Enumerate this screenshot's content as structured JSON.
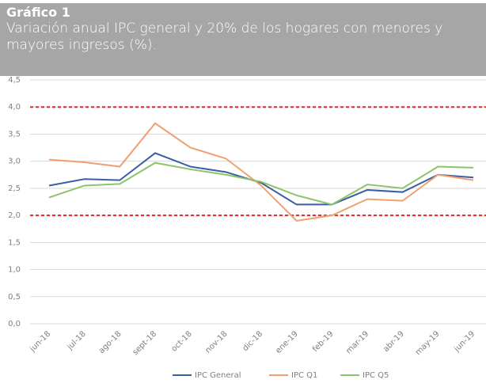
{
  "chart_data": {
    "type": "line",
    "title": "Gráfico 1",
    "subtitle": "Variación anual IPC general y 20% de los hogares con menores y mayores ingresos (%).",
    "categories": [
      "jun-18",
      "jul-18",
      "ago-18",
      "sept-18",
      "oct-18",
      "nov-18",
      "dic-18",
      "ene-19",
      "feb-19",
      "mar-19",
      "abr-19",
      "may-19",
      "jun-19"
    ],
    "series": [
      {
        "name": "IPC General",
        "color": "#3b5ea6",
        "values": [
          2.55,
          2.67,
          2.65,
          3.15,
          2.9,
          2.8,
          2.6,
          2.2,
          2.2,
          2.47,
          2.43,
          2.75,
          2.7
        ]
      },
      {
        "name": "IPC Q1",
        "color": "#f0a070",
        "values": [
          3.03,
          2.98,
          2.9,
          3.7,
          3.25,
          3.05,
          2.55,
          1.9,
          2.0,
          2.3,
          2.27,
          2.75,
          2.65
        ]
      },
      {
        "name": "IPC Q5",
        "color": "#8cc46a",
        "values": [
          2.33,
          2.55,
          2.58,
          2.97,
          2.85,
          2.75,
          2.62,
          2.37,
          2.2,
          2.57,
          2.5,
          2.9,
          2.88
        ]
      }
    ],
    "reference_lines": [
      {
        "value": 4.0,
        "color": "#e02828"
      },
      {
        "value": 2.0,
        "color": "#e02828"
      }
    ],
    "ylim": [
      0,
      4.5
    ],
    "yticks": [
      {
        "value": 0,
        "label": "0,0"
      },
      {
        "value": 0.5,
        "label": "0,5"
      },
      {
        "value": 1,
        "label": "1,0"
      },
      {
        "value": 1.5,
        "label": "1,5"
      },
      {
        "value": 2,
        "label": "2,0"
      },
      {
        "value": 2.5,
        "label": "2,5"
      },
      {
        "value": 3,
        "label": "3,0"
      },
      {
        "value": 3.5,
        "label": "3,5"
      },
      {
        "value": 4,
        "label": "4,0"
      },
      {
        "value": 4.5,
        "label": "4,5"
      }
    ],
    "grid": true
  }
}
